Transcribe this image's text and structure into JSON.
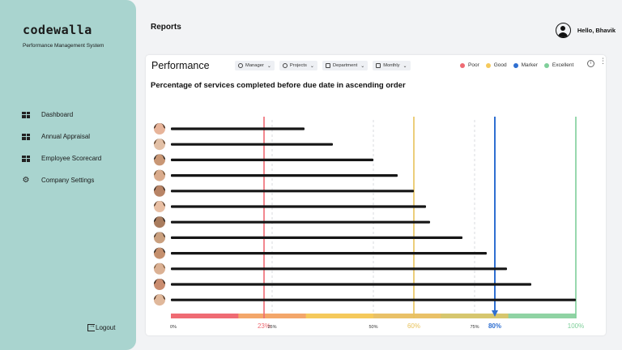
{
  "sidebar": {
    "logo": "codewalla",
    "tagline": "Performance Management System",
    "items": [
      {
        "label": "Dashboard",
        "icon": "dashboard-icon"
      },
      {
        "label": "Annual Appraisal",
        "icon": "appraisal-icon"
      },
      {
        "label": "Employee Scorecard",
        "icon": "scorecard-icon"
      },
      {
        "label": "Company Settings",
        "icon": "gear-icon"
      }
    ],
    "logout": "Logout"
  },
  "header": {
    "title": "Reports",
    "greeting": "Hello, Bhavik"
  },
  "card": {
    "title": "Performance",
    "filters": [
      {
        "label": "Manager",
        "icon": "person-icon"
      },
      {
        "label": "Projects",
        "icon": "link-icon"
      },
      {
        "label": "Department",
        "icon": "briefcase-icon"
      },
      {
        "label": "Monthly",
        "icon": "calendar-icon"
      }
    ],
    "legend": [
      {
        "label": "Poor",
        "color": "#ef6b73"
      },
      {
        "label": "Good",
        "color": "#f5c95b"
      },
      {
        "label": "Marker",
        "color": "#2f6fd1"
      },
      {
        "label": "Excellent",
        "color": "#7fcf9a"
      }
    ],
    "subtitle": "Percentage of services completed before due date in ascending order"
  },
  "chart_data": {
    "type": "bar",
    "orientation": "horizontal",
    "title": "Percentage of services completed before due date in ascending order",
    "xlim": [
      0,
      100
    ],
    "tick_labels": [
      "0%",
      "25%",
      "50%",
      "75%"
    ],
    "values": [
      33,
      40,
      50,
      56,
      60,
      63,
      64,
      72,
      78,
      83,
      89,
      100
    ],
    "thresholds": [
      {
        "value": 23,
        "label": "23%",
        "color": "#ef6b73"
      },
      {
        "value": 60,
        "label": "60%",
        "color": "#e8c25a"
      },
      {
        "value": 80,
        "label": "80%",
        "color": "#2f6fd1"
      },
      {
        "value": 100,
        "label": "100%",
        "color": "#7fcf9a"
      }
    ],
    "band_colors": [
      "#ef6b73",
      "#f3a66a",
      "#f5c95b",
      "#e9c167",
      "#d6c66e",
      "#8fd3a3"
    ]
  }
}
